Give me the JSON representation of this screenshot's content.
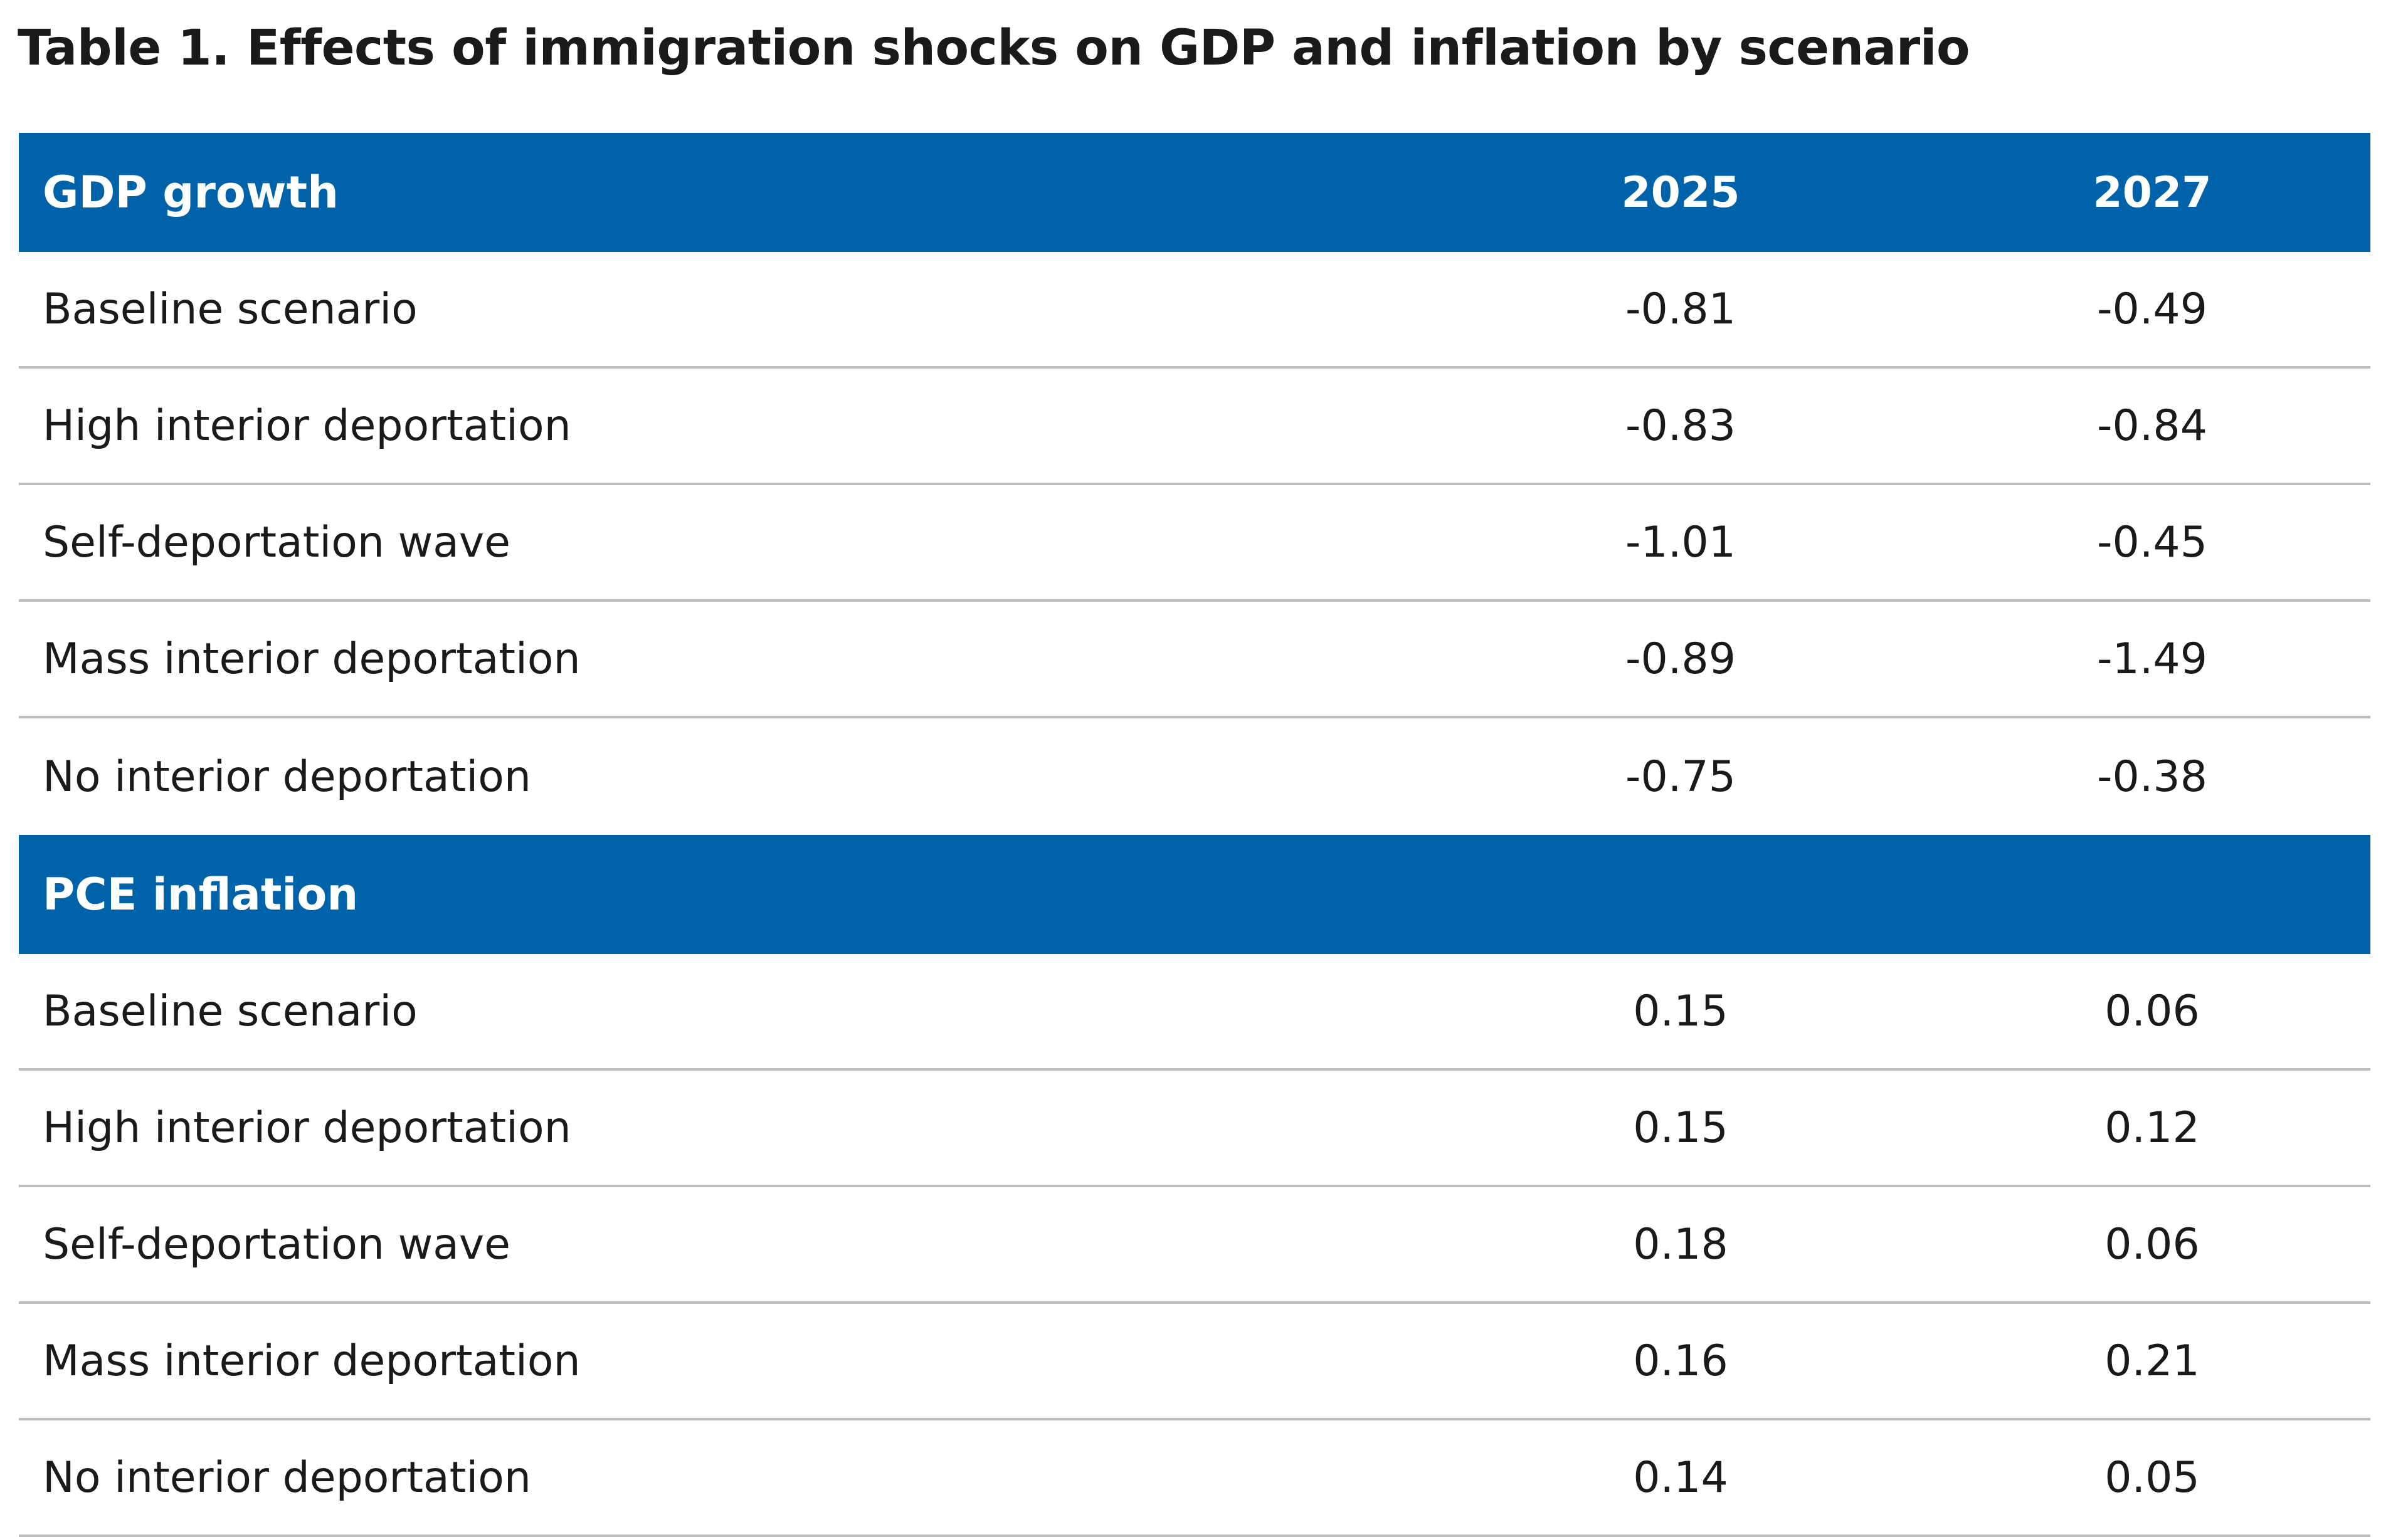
{
  "title": "Table 1. Effects of immigration shocks on GDP and inflation by scenario",
  "columns": [
    "2025",
    "2027"
  ],
  "sections": [
    {
      "name": "GDP growth",
      "rows": [
        {
          "label": "Baseline scenario",
          "v2025": "-0.81",
          "v2027": "-0.49"
        },
        {
          "label": "High interior deportation",
          "v2025": "-0.83",
          "v2027": "-0.84"
        },
        {
          "label": "Self-deportation wave",
          "v2025": "-1.01",
          "v2027": "-0.45"
        },
        {
          "label": "Mass interior deportation",
          "v2025": "-0.89",
          "v2027": "-1.49"
        },
        {
          "label": "No interior deportation",
          "v2025": "-0.75",
          "v2027": "-0.38"
        }
      ]
    },
    {
      "name": "PCE inflation",
      "rows": [
        {
          "label": "Baseline scenario",
          "v2025": "0.15",
          "v2027": "0.06"
        },
        {
          "label": "High interior deportation",
          "v2025": "0.15",
          "v2027": "0.12"
        },
        {
          "label": "Self-deportation wave",
          "v2025": "0.18",
          "v2027": "0.06"
        },
        {
          "label": "Mass interior deportation",
          "v2025": "0.16",
          "v2027": "0.21"
        },
        {
          "label": "No interior deportation",
          "v2025": "0.14",
          "v2027": "0.05"
        }
      ]
    }
  ],
  "colors": {
    "header_bg": "#0063a9",
    "header_text": "#ffffff",
    "row_divider": "#bdbdbd",
    "body_text": "#1a1a1a"
  }
}
